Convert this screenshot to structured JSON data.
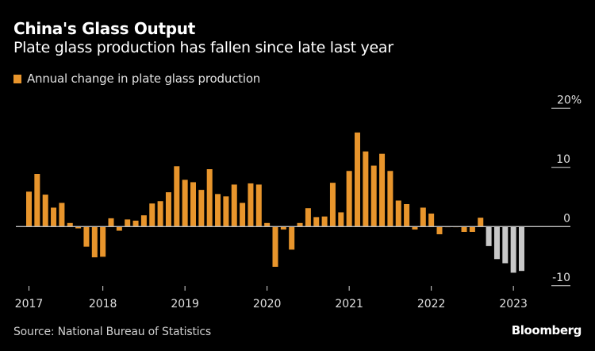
{
  "header": {
    "title": "China's Glass Output",
    "subtitle": "Plate glass production has fallen since late last year"
  },
  "legend": {
    "label": "Annual change in plate glass production",
    "color": "#E8952C"
  },
  "footer": {
    "source": "Source: National Bureau of Statistics",
    "brand": "Bloomberg"
  },
  "colors": {
    "background": "#000000",
    "bar_primary": "#E8952C",
    "bar_highlight": "#C8C8C8",
    "axis": "#BDBDBD",
    "text": "#FFFFFF"
  },
  "chart_data": {
    "type": "bar",
    "title": "China's Glass Output",
    "subtitle": "Plate glass production has fallen since late last year",
    "xlabel": "",
    "ylabel": "",
    "ylim": [
      -10,
      20
    ],
    "y_ticks": [
      {
        "value": 20,
        "label": "20%"
      },
      {
        "value": 10,
        "label": "10"
      },
      {
        "value": 0,
        "label": "0"
      },
      {
        "value": -10,
        "label": "-10"
      }
    ],
    "y_axis_side": "right",
    "grid": false,
    "legend_position": "top-left",
    "x_ticks": [
      {
        "index": 0,
        "label": "2017"
      },
      {
        "index": 9,
        "label": "2018"
      },
      {
        "index": 19,
        "label": "2019"
      },
      {
        "index": 29,
        "label": "2020"
      },
      {
        "index": 39,
        "label": "2021"
      },
      {
        "index": 49,
        "label": "2022"
      },
      {
        "index": 59,
        "label": "2023"
      }
    ],
    "series": [
      {
        "name": "Annual change in plate glass production",
        "unit": "%",
        "highlight_from_index": 56,
        "values": [
          5.9,
          8.9,
          5.4,
          3.2,
          4.0,
          0.6,
          -0.3,
          -3.4,
          -5.2,
          -5.1,
          1.4,
          -0.7,
          1.2,
          1.0,
          1.9,
          3.9,
          4.3,
          5.8,
          10.2,
          7.9,
          7.5,
          6.2,
          9.7,
          5.5,
          5.1,
          7.1,
          4.0,
          7.3,
          7.1,
          0.6,
          -6.8,
          -0.5,
          -3.9,
          0.6,
          3.1,
          1.6,
          1.7,
          7.4,
          2.4,
          9.4,
          15.9,
          12.7,
          10.3,
          12.3,
          9.4,
          4.4,
          3.8,
          -0.5,
          3.2,
          2.2,
          -1.3,
          -0.1,
          -0.1,
          -0.9,
          -0.9,
          1.5,
          -3.3,
          -5.5,
          -6.2,
          -7.8,
          -7.5
        ]
      }
    ]
  }
}
